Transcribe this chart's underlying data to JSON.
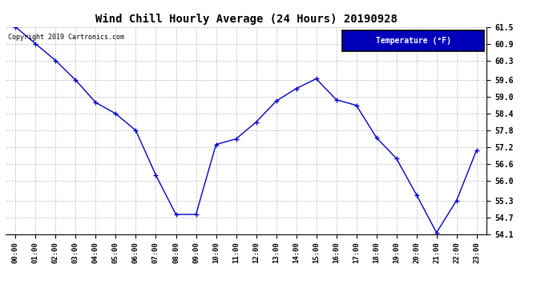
{
  "title": "Wind Chill Hourly Average (24 Hours) 20190928",
  "copyright": "Copyright 2019 Cartronics.com",
  "legend_label": "Temperature (°F)",
  "x_labels": [
    "00:00",
    "01:00",
    "02:00",
    "03:00",
    "04:00",
    "05:00",
    "06:00",
    "07:00",
    "08:00",
    "09:00",
    "10:00",
    "11:00",
    "12:00",
    "13:00",
    "14:00",
    "15:00",
    "16:00",
    "17:00",
    "18:00",
    "19:00",
    "20:00",
    "21:00",
    "22:00",
    "23:00"
  ],
  "y_values": [
    61.5,
    60.9,
    60.3,
    59.6,
    58.8,
    58.4,
    57.8,
    56.2,
    54.8,
    54.8,
    57.3,
    57.5,
    58.1,
    58.85,
    59.3,
    59.65,
    58.9,
    58.7,
    57.55,
    56.8,
    55.5,
    54.15,
    55.3,
    57.1
  ],
  "ylim_min": 54.1,
  "ylim_max": 61.5,
  "yticks": [
    54.1,
    54.7,
    55.3,
    56.0,
    56.6,
    57.2,
    57.8,
    58.4,
    59.0,
    59.6,
    60.3,
    60.9,
    61.5
  ],
  "line_color": "#0000cc",
  "marker": "+",
  "background_color": "#ffffff",
  "plot_bg_color": "#ffffff",
  "grid_color": "#bbbbbb",
  "title_color": "#000000",
  "legend_bg": "#0000bb",
  "legend_text_color": "#ffffff"
}
